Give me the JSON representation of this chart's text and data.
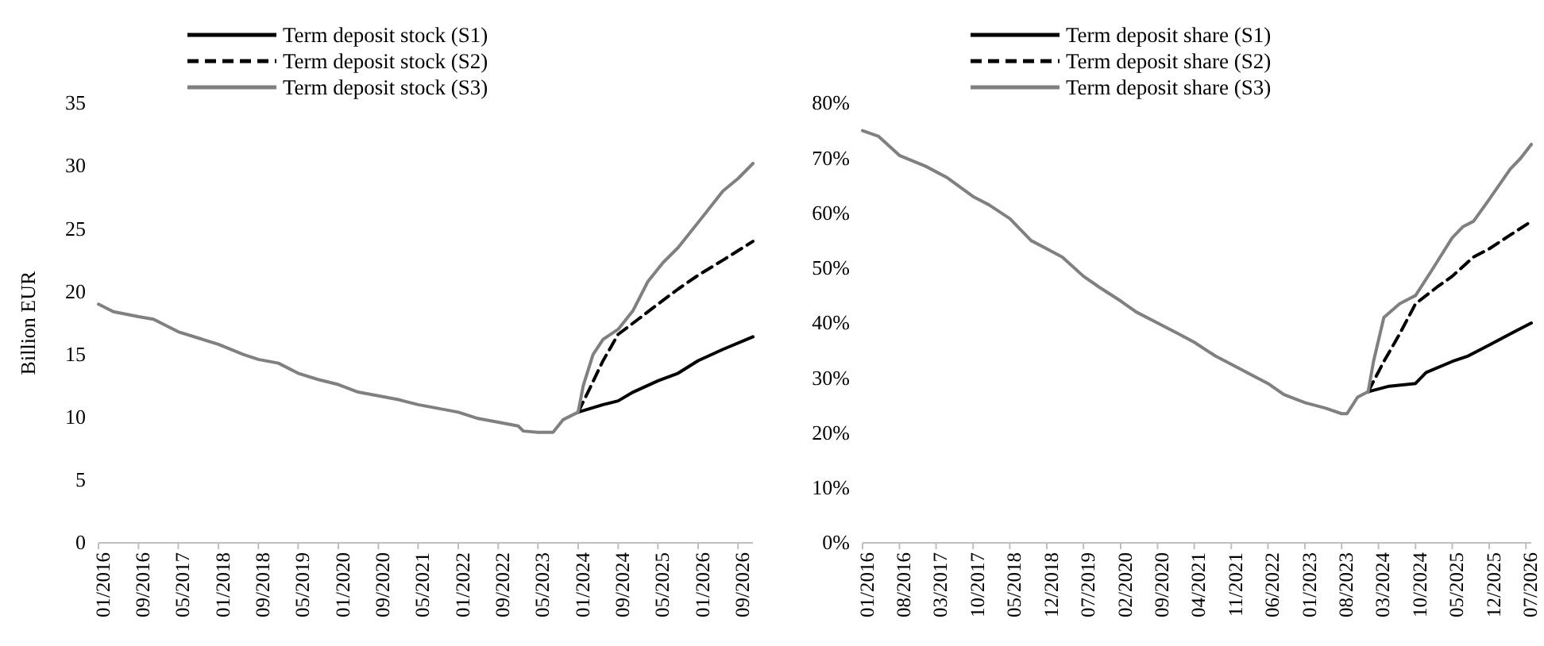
{
  "chart_data": [
    {
      "type": "line",
      "ylabel": "Billion EUR",
      "legend": "top",
      "xlim": [
        "2016-01",
        "2026-12"
      ],
      "ylim": [
        0,
        35
      ],
      "yticks": [
        0,
        5,
        10,
        15,
        20,
        25,
        30,
        35
      ],
      "xticks": [
        {
          "value": "2016-01",
          "label": "01/2016"
        },
        {
          "value": "2016-09",
          "label": "09/2016"
        },
        {
          "value": "2017-05",
          "label": "05/2017"
        },
        {
          "value": "2018-01",
          "label": "01/2018"
        },
        {
          "value": "2018-09",
          "label": "09/2018"
        },
        {
          "value": "2019-05",
          "label": "05/2019"
        },
        {
          "value": "2020-01",
          "label": "01/2020"
        },
        {
          "value": "2020-09",
          "label": "09/2020"
        },
        {
          "value": "2021-05",
          "label": "05/2021"
        },
        {
          "value": "2022-01",
          "label": "01/2022"
        },
        {
          "value": "2022-09",
          "label": "09/2022"
        },
        {
          "value": "2023-05",
          "label": "05/2023"
        },
        {
          "value": "2024-01",
          "label": "01/2024"
        },
        {
          "value": "2024-09",
          "label": "09/2024"
        },
        {
          "value": "2025-05",
          "label": "05/2025"
        },
        {
          "value": "2026-01",
          "label": "01/2026"
        },
        {
          "value": "2026-09",
          "label": "09/2026"
        }
      ],
      "series": [
        {
          "name": "Term deposit stock (S1)",
          "color": "#000000",
          "line_style": "solid",
          "x": [
            "2024-01",
            "2024-06",
            "2024-09",
            "2024-12",
            "2025-05",
            "2025-09",
            "2026-01",
            "2026-06",
            "2026-12"
          ],
          "values": [
            10.4,
            11.0,
            11.3,
            12.0,
            12.9,
            13.5,
            14.5,
            15.4,
            16.4
          ]
        },
        {
          "name": "Term deposit stock (S2)",
          "color": "#000000",
          "line_style": "dashed",
          "x": [
            "2024-01",
            "2024-03",
            "2024-06",
            "2024-09",
            "2025-01",
            "2025-05",
            "2025-09",
            "2026-01",
            "2026-06",
            "2026-12"
          ],
          "values": [
            10.4,
            12.0,
            14.5,
            16.6,
            17.8,
            19.0,
            20.2,
            21.3,
            22.5,
            24.0
          ]
        },
        {
          "name": "Term deposit stock (S3)",
          "color": "#808080",
          "line_style": "solid",
          "x": [
            "2016-01",
            "2016-04",
            "2016-09",
            "2016-12",
            "2017-05",
            "2017-09",
            "2018-01",
            "2018-06",
            "2018-09",
            "2019-01",
            "2019-05",
            "2019-09",
            "2020-01",
            "2020-05",
            "2020-09",
            "2021-01",
            "2021-05",
            "2021-09",
            "2022-01",
            "2022-05",
            "2022-09",
            "2023-01",
            "2023-02",
            "2023-05",
            "2023-08",
            "2023-10",
            "2024-01",
            "2024-02",
            "2024-04",
            "2024-06",
            "2024-09",
            "2024-12",
            "2025-03",
            "2025-06",
            "2025-09",
            "2026-01",
            "2026-06",
            "2026-09",
            "2026-12"
          ],
          "values": [
            19.0,
            18.4,
            18.0,
            17.8,
            16.8,
            16.3,
            15.8,
            15.0,
            14.6,
            14.3,
            13.5,
            13.0,
            12.6,
            12.0,
            11.7,
            11.4,
            11.0,
            10.7,
            10.4,
            9.9,
            9.6,
            9.3,
            8.9,
            8.8,
            8.8,
            9.8,
            10.4,
            12.5,
            15.0,
            16.2,
            17.0,
            18.5,
            20.8,
            22.3,
            23.5,
            25.5,
            28.0,
            29.0,
            30.2
          ]
        }
      ]
    },
    {
      "type": "line",
      "legend": "top",
      "xlim": [
        "2016-01",
        "2026-08"
      ],
      "ylim": [
        0,
        80
      ],
      "yticks": [
        {
          "value": 0,
          "label": "0%"
        },
        {
          "value": 10,
          "label": "10%"
        },
        {
          "value": 20,
          "label": "20%"
        },
        {
          "value": 30,
          "label": "30%"
        },
        {
          "value": 40,
          "label": "40%"
        },
        {
          "value": 50,
          "label": "50%"
        },
        {
          "value": 60,
          "label": "60%"
        },
        {
          "value": 70,
          "label": "70%"
        },
        {
          "value": 80,
          "label": "80%"
        }
      ],
      "xticks": [
        {
          "value": "2016-01",
          "label": "01/2016"
        },
        {
          "value": "2016-08",
          "label": "08/2016"
        },
        {
          "value": "2017-03",
          "label": "03/2017"
        },
        {
          "value": "2017-10",
          "label": "10/2017"
        },
        {
          "value": "2018-05",
          "label": "05/2018"
        },
        {
          "value": "2018-12",
          "label": "12/2018"
        },
        {
          "value": "2019-07",
          "label": "07/2019"
        },
        {
          "value": "2020-02",
          "label": "02/2020"
        },
        {
          "value": "2020-09",
          "label": "09/2020"
        },
        {
          "value": "2021-04",
          "label": "04/2021"
        },
        {
          "value": "2021-11",
          "label": "11/2021"
        },
        {
          "value": "2022-06",
          "label": "06/2022"
        },
        {
          "value": "2023-01",
          "label": "01/2023"
        },
        {
          "value": "2023-08",
          "label": "08/2023"
        },
        {
          "value": "2024-03",
          "label": "03/2024"
        },
        {
          "value": "2024-10",
          "label": "10/2024"
        },
        {
          "value": "2025-05",
          "label": "05/2025"
        },
        {
          "value": "2025-12",
          "label": "12/2025"
        },
        {
          "value": "2026-07",
          "label": "07/2026"
        }
      ],
      "series": [
        {
          "name": "Term deposit share (S1)",
          "color": "#000000",
          "line_style": "solid",
          "x": [
            "2024-01",
            "2024-05",
            "2024-10",
            "2024-12",
            "2025-05",
            "2025-08",
            "2025-12",
            "2026-04",
            "2026-08"
          ],
          "values": [
            27.5,
            28.5,
            29,
            31,
            33,
            34,
            36,
            38,
            40
          ]
        },
        {
          "name": "Term deposit share (S2)",
          "color": "#000000",
          "line_style": "dashed",
          "x": [
            "2024-01",
            "2024-04",
            "2024-07",
            "2024-10",
            "2025-02",
            "2025-05",
            "2025-09",
            "2025-12",
            "2026-04",
            "2026-08"
          ],
          "values": [
            27.5,
            33,
            38,
            43.5,
            46.5,
            48.5,
            52,
            53.5,
            56,
            58.5
          ]
        },
        {
          "name": "Term deposit share (S3)",
          "color": "#808080",
          "line_style": "solid",
          "x": [
            "2016-01",
            "2016-04",
            "2016-08",
            "2017-01",
            "2017-05",
            "2017-10",
            "2018-01",
            "2018-05",
            "2018-09",
            "2018-12",
            "2019-03",
            "2019-07",
            "2019-10",
            "2020-02",
            "2020-05",
            "2020-09",
            "2021-01",
            "2021-04",
            "2021-08",
            "2021-11",
            "2022-03",
            "2022-06",
            "2022-09",
            "2023-01",
            "2023-05",
            "2023-08",
            "2023-09",
            "2023-11",
            "2024-01",
            "2024-02",
            "2024-04",
            "2024-07",
            "2024-10",
            "2025-01",
            "2025-05",
            "2025-07",
            "2025-09",
            "2025-12",
            "2026-04",
            "2026-06",
            "2026-08"
          ],
          "values": [
            75,
            74,
            70.5,
            68.5,
            66.5,
            63,
            61.5,
            59,
            55,
            53.5,
            52,
            48.5,
            46.5,
            44,
            42,
            40,
            38,
            36.5,
            34,
            32.5,
            30.5,
            29,
            27,
            25.5,
            24.5,
            23.5,
            23.5,
            26.5,
            27.5,
            33,
            41,
            43.5,
            45,
            49.5,
            55.5,
            57.5,
            58.5,
            62.5,
            68,
            70,
            72.5
          ]
        }
      ]
    }
  ]
}
